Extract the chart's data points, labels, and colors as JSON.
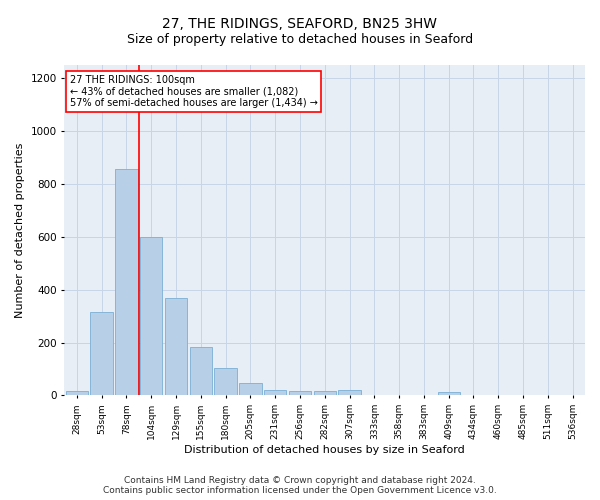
{
  "title": "27, THE RIDINGS, SEAFORD, BN25 3HW",
  "subtitle": "Size of property relative to detached houses in Seaford",
  "xlabel": "Distribution of detached houses by size in Seaford",
  "ylabel": "Number of detached properties",
  "bar_labels": [
    "28sqm",
    "53sqm",
    "78sqm",
    "104sqm",
    "129sqm",
    "155sqm",
    "180sqm",
    "205sqm",
    "231sqm",
    "256sqm",
    "282sqm",
    "307sqm",
    "333sqm",
    "358sqm",
    "383sqm",
    "409sqm",
    "434sqm",
    "460sqm",
    "485sqm",
    "511sqm",
    "536sqm"
  ],
  "bar_values": [
    18,
    315,
    855,
    600,
    370,
    185,
    105,
    48,
    22,
    18,
    18,
    20,
    0,
    0,
    0,
    12,
    0,
    0,
    0,
    0,
    0
  ],
  "bar_color": "#b8cfe8",
  "bar_edge_color": "#7bafd4",
  "vline_color": "red",
  "vline_position": 2.5,
  "annotation_text": "27 THE RIDINGS: 100sqm\n← 43% of detached houses are smaller (1,082)\n57% of semi-detached houses are larger (1,434) →",
  "annotation_box_color": "white",
  "annotation_box_edge": "red",
  "ylim": [
    0,
    1250
  ],
  "yticks": [
    0,
    200,
    400,
    600,
    800,
    1000,
    1200
  ],
  "grid_color": "#c8d4e8",
  "bg_color": "#e8eef5",
  "footer": "Contains HM Land Registry data © Crown copyright and database right 2024.\nContains public sector information licensed under the Open Government Licence v3.0.",
  "title_fontsize": 10,
  "subtitle_fontsize": 9,
  "xlabel_fontsize": 8,
  "ylabel_fontsize": 8,
  "footer_fontsize": 6.5
}
